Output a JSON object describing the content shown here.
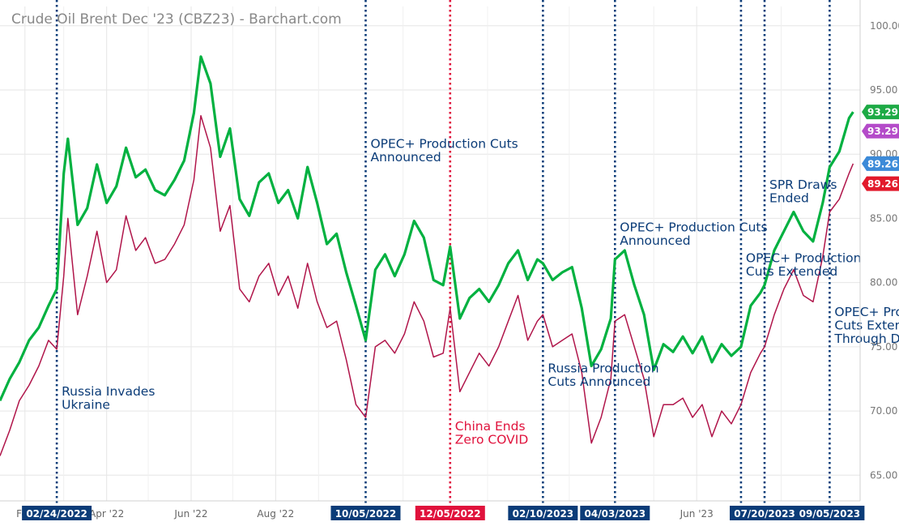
{
  "chart_data": {
    "type": "line",
    "title": "Crude Oil Brent Dec '23 (CBZ23) - Barchart.com",
    "y_axis": {
      "ylim": [
        63,
        101.5
      ],
      "ticks": [
        {
          "value": 100,
          "label": "100.00"
        },
        {
          "value": 95,
          "label": "95.00"
        },
        {
          "value": 90,
          "label": "90.00"
        },
        {
          "value": 85,
          "label": "85.00"
        },
        {
          "value": 80,
          "label": "80.00"
        },
        {
          "value": 75,
          "label": "75.00"
        },
        {
          "value": 70,
          "label": "70.00"
        },
        {
          "value": 65,
          "label": "65.00"
        }
      ]
    },
    "x_axis": {
      "range": [
        "2022-01-14",
        "2023-09-27"
      ],
      "month_ticks": [
        {
          "date": "2022-02-01",
          "label": "Feb"
        },
        {
          "date": "2022-04-01",
          "label": "Apr '22"
        },
        {
          "date": "2022-06-01",
          "label": "Jun '22"
        },
        {
          "date": "2022-08-01",
          "label": "Aug '22"
        },
        {
          "date": "2023-06-01",
          "label": "Jun '23"
        }
      ]
    },
    "series": [
      {
        "color": "#00b140",
        "last_value_label": "93.29",
        "points": [
          [
            "2022-01-14",
            70.8
          ],
          [
            "2022-01-21",
            72.5
          ],
          [
            "2022-01-28",
            73.8
          ],
          [
            "2022-02-04",
            75.5
          ],
          [
            "2022-02-11",
            76.5
          ],
          [
            "2022-02-18",
            78.2
          ],
          [
            "2022-02-24",
            79.5
          ],
          [
            "2022-03-01",
            88.5
          ],
          [
            "2022-03-04",
            91.2
          ],
          [
            "2022-03-11",
            84.5
          ],
          [
            "2022-03-18",
            85.8
          ],
          [
            "2022-03-25",
            89.2
          ],
          [
            "2022-04-01",
            86.2
          ],
          [
            "2022-04-08",
            87.5
          ],
          [
            "2022-04-15",
            90.5
          ],
          [
            "2022-04-22",
            88.2
          ],
          [
            "2022-04-29",
            88.8
          ],
          [
            "2022-05-06",
            87.2
          ],
          [
            "2022-05-13",
            86.8
          ],
          [
            "2022-05-20",
            88.0
          ],
          [
            "2022-05-27",
            89.5
          ],
          [
            "2022-06-03",
            93.2
          ],
          [
            "2022-06-08",
            97.6
          ],
          [
            "2022-06-15",
            95.5
          ],
          [
            "2022-06-22",
            89.8
          ],
          [
            "2022-06-29",
            92.0
          ],
          [
            "2022-07-06",
            86.5
          ],
          [
            "2022-07-13",
            85.2
          ],
          [
            "2022-07-20",
            87.8
          ],
          [
            "2022-07-27",
            88.5
          ],
          [
            "2022-08-03",
            86.2
          ],
          [
            "2022-08-10",
            87.2
          ],
          [
            "2022-08-17",
            85.0
          ],
          [
            "2022-08-24",
            89.0
          ],
          [
            "2022-08-31",
            86.2
          ],
          [
            "2022-09-07",
            83.0
          ],
          [
            "2022-09-14",
            83.8
          ],
          [
            "2022-09-21",
            80.8
          ],
          [
            "2022-09-28",
            78.2
          ],
          [
            "2022-10-05",
            75.5
          ],
          [
            "2022-10-12",
            81.0
          ],
          [
            "2022-10-19",
            82.2
          ],
          [
            "2022-10-26",
            80.5
          ],
          [
            "2022-11-02",
            82.2
          ],
          [
            "2022-11-09",
            84.8
          ],
          [
            "2022-11-16",
            83.5
          ],
          [
            "2022-11-23",
            80.2
          ],
          [
            "2022-11-30",
            79.8
          ],
          [
            "2022-12-05",
            82.8
          ],
          [
            "2022-12-12",
            77.2
          ],
          [
            "2022-12-19",
            78.8
          ],
          [
            "2022-12-26",
            79.5
          ],
          [
            "2023-01-02",
            78.5
          ],
          [
            "2023-01-09",
            79.8
          ],
          [
            "2023-01-16",
            81.5
          ],
          [
            "2023-01-23",
            82.5
          ],
          [
            "2023-01-30",
            80.2
          ],
          [
            "2023-02-06",
            81.8
          ],
          [
            "2023-02-10",
            81.5
          ],
          [
            "2023-02-17",
            80.2
          ],
          [
            "2023-02-24",
            80.8
          ],
          [
            "2023-03-03",
            81.2
          ],
          [
            "2023-03-10",
            78.0
          ],
          [
            "2023-03-17",
            73.5
          ],
          [
            "2023-03-24",
            74.8
          ],
          [
            "2023-03-31",
            77.2
          ],
          [
            "2023-04-03",
            81.8
          ],
          [
            "2023-04-10",
            82.5
          ],
          [
            "2023-04-17",
            79.8
          ],
          [
            "2023-04-24",
            77.5
          ],
          [
            "2023-05-01",
            73.2
          ],
          [
            "2023-05-08",
            75.2
          ],
          [
            "2023-05-15",
            74.6
          ],
          [
            "2023-05-22",
            75.8
          ],
          [
            "2023-05-29",
            74.5
          ],
          [
            "2023-06-05",
            75.8
          ],
          [
            "2023-06-12",
            73.8
          ],
          [
            "2023-06-19",
            75.2
          ],
          [
            "2023-06-26",
            74.3
          ],
          [
            "2023-07-03",
            75.0
          ],
          [
            "2023-07-10",
            78.2
          ],
          [
            "2023-07-17",
            79.2
          ],
          [
            "2023-07-20",
            79.8
          ],
          [
            "2023-07-27",
            82.5
          ],
          [
            "2023-08-03",
            84.0
          ],
          [
            "2023-08-10",
            85.5
          ],
          [
            "2023-08-17",
            84.0
          ],
          [
            "2023-08-24",
            83.2
          ],
          [
            "2023-08-31",
            86.2
          ],
          [
            "2023-09-05",
            89.0
          ],
          [
            "2023-09-12",
            90.2
          ],
          [
            "2023-09-19",
            92.8
          ],
          [
            "2023-09-22",
            93.29
          ]
        ]
      },
      {
        "color": "#b0154a",
        "last_value_label": "89.26",
        "points": [
          [
            "2022-01-14",
            66.5
          ],
          [
            "2022-01-21",
            68.5
          ],
          [
            "2022-01-28",
            70.8
          ],
          [
            "2022-02-04",
            72.0
          ],
          [
            "2022-02-11",
            73.5
          ],
          [
            "2022-02-18",
            75.5
          ],
          [
            "2022-02-24",
            74.8
          ],
          [
            "2022-03-01",
            80.5
          ],
          [
            "2022-03-04",
            85.0
          ],
          [
            "2022-03-11",
            77.5
          ],
          [
            "2022-03-18",
            80.5
          ],
          [
            "2022-03-25",
            84.0
          ],
          [
            "2022-04-01",
            80.0
          ],
          [
            "2022-04-08",
            81.0
          ],
          [
            "2022-04-15",
            85.2
          ],
          [
            "2022-04-22",
            82.5
          ],
          [
            "2022-04-29",
            83.5
          ],
          [
            "2022-05-06",
            81.5
          ],
          [
            "2022-05-13",
            81.8
          ],
          [
            "2022-05-20",
            83.0
          ],
          [
            "2022-05-27",
            84.5
          ],
          [
            "2022-06-03",
            88.0
          ],
          [
            "2022-06-08",
            93.0
          ],
          [
            "2022-06-15",
            90.5
          ],
          [
            "2022-06-22",
            84.0
          ],
          [
            "2022-06-29",
            86.0
          ],
          [
            "2022-07-06",
            79.5
          ],
          [
            "2022-07-13",
            78.5
          ],
          [
            "2022-07-20",
            80.5
          ],
          [
            "2022-07-27",
            81.5
          ],
          [
            "2022-08-03",
            79.0
          ],
          [
            "2022-08-10",
            80.5
          ],
          [
            "2022-08-17",
            78.0
          ],
          [
            "2022-08-24",
            81.5
          ],
          [
            "2022-08-31",
            78.5
          ],
          [
            "2022-09-07",
            76.5
          ],
          [
            "2022-09-14",
            77.0
          ],
          [
            "2022-09-21",
            74.0
          ],
          [
            "2022-09-28",
            70.5
          ],
          [
            "2022-10-05",
            69.5
          ],
          [
            "2022-10-12",
            75.0
          ],
          [
            "2022-10-19",
            75.5
          ],
          [
            "2022-10-26",
            74.5
          ],
          [
            "2022-11-02",
            76.0
          ],
          [
            "2022-11-09",
            78.5
          ],
          [
            "2022-11-16",
            77.0
          ],
          [
            "2022-11-23",
            74.2
          ],
          [
            "2022-11-30",
            74.5
          ],
          [
            "2022-12-05",
            78.0
          ],
          [
            "2022-12-12",
            71.5
          ],
          [
            "2022-12-19",
            73.0
          ],
          [
            "2022-12-26",
            74.5
          ],
          [
            "2023-01-02",
            73.5
          ],
          [
            "2023-01-09",
            75.0
          ],
          [
            "2023-01-16",
            77.0
          ],
          [
            "2023-01-23",
            79.0
          ],
          [
            "2023-01-30",
            75.5
          ],
          [
            "2023-02-06",
            77.0
          ],
          [
            "2023-02-10",
            77.5
          ],
          [
            "2023-02-17",
            75.0
          ],
          [
            "2023-02-24",
            75.5
          ],
          [
            "2023-03-03",
            76.0
          ],
          [
            "2023-03-10",
            73.0
          ],
          [
            "2023-03-17",
            67.5
          ],
          [
            "2023-03-24",
            69.5
          ],
          [
            "2023-03-31",
            72.5
          ],
          [
            "2023-04-03",
            77.0
          ],
          [
            "2023-04-10",
            77.5
          ],
          [
            "2023-04-17",
            75.0
          ],
          [
            "2023-04-24",
            72.5
          ],
          [
            "2023-05-01",
            68.0
          ],
          [
            "2023-05-08",
            70.5
          ],
          [
            "2023-05-15",
            70.5
          ],
          [
            "2023-05-22",
            71.0
          ],
          [
            "2023-05-29",
            69.5
          ],
          [
            "2023-06-05",
            70.5
          ],
          [
            "2023-06-12",
            68.0
          ],
          [
            "2023-06-19",
            70.0
          ],
          [
            "2023-06-26",
            69.0
          ],
          [
            "2023-07-03",
            70.5
          ],
          [
            "2023-07-10",
            73.0
          ],
          [
            "2023-07-17",
            74.5
          ],
          [
            "2023-07-20",
            75.0
          ],
          [
            "2023-07-27",
            77.5
          ],
          [
            "2023-08-03",
            79.5
          ],
          [
            "2023-08-10",
            81.0
          ],
          [
            "2023-08-17",
            79.0
          ],
          [
            "2023-08-24",
            78.5
          ],
          [
            "2023-08-31",
            82.0
          ],
          [
            "2023-09-05",
            85.5
          ],
          [
            "2023-09-12",
            86.5
          ],
          [
            "2023-09-19",
            88.5
          ],
          [
            "2023-09-22",
            89.26
          ]
        ]
      }
    ],
    "value_labels": [
      {
        "label": "93.29",
        "value": 93.29,
        "color": "#1daa45"
      },
      {
        "label": "93.29",
        "value": 91.8,
        "color": "#b44bc9"
      },
      {
        "label": "89.26",
        "value": 89.26,
        "color": "#3c8ad8"
      },
      {
        "label": "89.26",
        "value": 87.7,
        "color": "#e21a2c"
      }
    ],
    "events": [
      {
        "date": "2022-02-24",
        "date_label": "02/24/2022",
        "color": "#0b3c78",
        "annotation": [
          "Russia Invades",
          "Ukraine"
        ],
        "annotation_value": 71.2
      },
      {
        "date": "2022-10-05",
        "date_label": "10/05/2022",
        "color": "#0b3c78",
        "annotation": [
          "OPEC+ Production Cuts",
          "Announced"
        ],
        "annotation_value": 90.5
      },
      {
        "date": "2022-12-05",
        "date_label": "12/05/2022",
        "color": "#e0123c",
        "annotation": [
          "China Ends",
          "Zero COVID"
        ],
        "annotation_value": 68.5
      },
      {
        "date": "2023-02-10",
        "date_label": "02/10/2023",
        "color": "#0b3c78",
        "annotation": [
          "Russia Production",
          "Cuts Announced"
        ],
        "annotation_value": 73.0
      },
      {
        "date": "2023-04-03",
        "date_label": "04/03/2023",
        "color": "#0b3c78",
        "annotation": [
          "OPEC+ Production Cuts",
          "Announced"
        ],
        "annotation_value": 84.0
      },
      {
        "date": "2023-07-03",
        "date_label": "07",
        "color": "#0b3c78",
        "annotation": [
          "OPEC+ Production",
          "Cuts Extended"
        ],
        "annotation_value": 81.6
      },
      {
        "date": "2023-07-20",
        "date_label": "07/20/2023",
        "color": "#0b3c78",
        "annotation": [
          "SPR Draws",
          "Ended"
        ],
        "annotation_value": 87.3
      },
      {
        "date": "2023-09-05",
        "date_label": "09/05/2023",
        "color": "#0b3c78",
        "annotation": [
          "OPEC+ Pro",
          "Cuts Exten",
          "Through D"
        ],
        "annotation_value": 77.4
      }
    ]
  }
}
